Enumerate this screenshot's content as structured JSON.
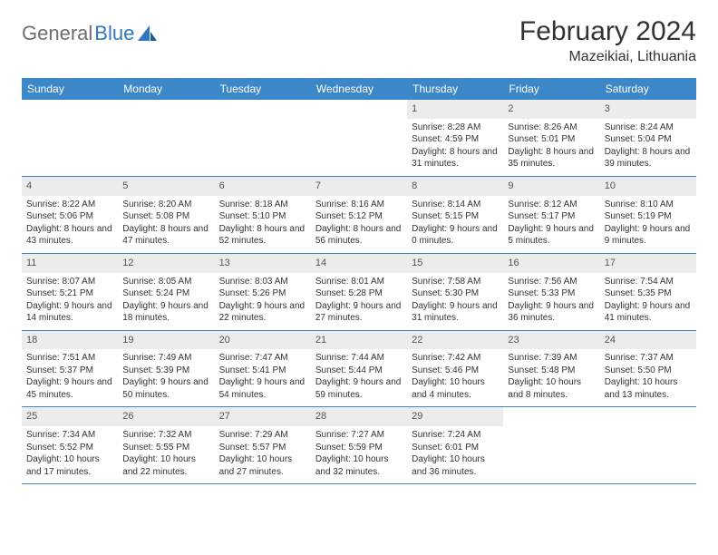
{
  "logo": {
    "general": "General",
    "blue": "Blue"
  },
  "title": "February 2024",
  "location": "Mazeikiai, Lithuania",
  "colors": {
    "header_bg": "#3b87c8",
    "header_text": "#ffffff",
    "daynum_bg": "#ececec",
    "rule": "#3b87c8",
    "text": "#333333"
  },
  "dayheads": [
    "Sunday",
    "Monday",
    "Tuesday",
    "Wednesday",
    "Thursday",
    "Friday",
    "Saturday"
  ],
  "weeks": [
    [
      {
        "num": "",
        "sunrise": "",
        "sunset": "",
        "daylight": ""
      },
      {
        "num": "",
        "sunrise": "",
        "sunset": "",
        "daylight": ""
      },
      {
        "num": "",
        "sunrise": "",
        "sunset": "",
        "daylight": ""
      },
      {
        "num": "",
        "sunrise": "",
        "sunset": "",
        "daylight": ""
      },
      {
        "num": "1",
        "sunrise": "Sunrise: 8:28 AM",
        "sunset": "Sunset: 4:59 PM",
        "daylight": "Daylight: 8 hours and 31 minutes."
      },
      {
        "num": "2",
        "sunrise": "Sunrise: 8:26 AM",
        "sunset": "Sunset: 5:01 PM",
        "daylight": "Daylight: 8 hours and 35 minutes."
      },
      {
        "num": "3",
        "sunrise": "Sunrise: 8:24 AM",
        "sunset": "Sunset: 5:04 PM",
        "daylight": "Daylight: 8 hours and 39 minutes."
      }
    ],
    [
      {
        "num": "4",
        "sunrise": "Sunrise: 8:22 AM",
        "sunset": "Sunset: 5:06 PM",
        "daylight": "Daylight: 8 hours and 43 minutes."
      },
      {
        "num": "5",
        "sunrise": "Sunrise: 8:20 AM",
        "sunset": "Sunset: 5:08 PM",
        "daylight": "Daylight: 8 hours and 47 minutes."
      },
      {
        "num": "6",
        "sunrise": "Sunrise: 8:18 AM",
        "sunset": "Sunset: 5:10 PM",
        "daylight": "Daylight: 8 hours and 52 minutes."
      },
      {
        "num": "7",
        "sunrise": "Sunrise: 8:16 AM",
        "sunset": "Sunset: 5:12 PM",
        "daylight": "Daylight: 8 hours and 56 minutes."
      },
      {
        "num": "8",
        "sunrise": "Sunrise: 8:14 AM",
        "sunset": "Sunset: 5:15 PM",
        "daylight": "Daylight: 9 hours and 0 minutes."
      },
      {
        "num": "9",
        "sunrise": "Sunrise: 8:12 AM",
        "sunset": "Sunset: 5:17 PM",
        "daylight": "Daylight: 9 hours and 5 minutes."
      },
      {
        "num": "10",
        "sunrise": "Sunrise: 8:10 AM",
        "sunset": "Sunset: 5:19 PM",
        "daylight": "Daylight: 9 hours and 9 minutes."
      }
    ],
    [
      {
        "num": "11",
        "sunrise": "Sunrise: 8:07 AM",
        "sunset": "Sunset: 5:21 PM",
        "daylight": "Daylight: 9 hours and 14 minutes."
      },
      {
        "num": "12",
        "sunrise": "Sunrise: 8:05 AM",
        "sunset": "Sunset: 5:24 PM",
        "daylight": "Daylight: 9 hours and 18 minutes."
      },
      {
        "num": "13",
        "sunrise": "Sunrise: 8:03 AM",
        "sunset": "Sunset: 5:26 PM",
        "daylight": "Daylight: 9 hours and 22 minutes."
      },
      {
        "num": "14",
        "sunrise": "Sunrise: 8:01 AM",
        "sunset": "Sunset: 5:28 PM",
        "daylight": "Daylight: 9 hours and 27 minutes."
      },
      {
        "num": "15",
        "sunrise": "Sunrise: 7:58 AM",
        "sunset": "Sunset: 5:30 PM",
        "daylight": "Daylight: 9 hours and 31 minutes."
      },
      {
        "num": "16",
        "sunrise": "Sunrise: 7:56 AM",
        "sunset": "Sunset: 5:33 PM",
        "daylight": "Daylight: 9 hours and 36 minutes."
      },
      {
        "num": "17",
        "sunrise": "Sunrise: 7:54 AM",
        "sunset": "Sunset: 5:35 PM",
        "daylight": "Daylight: 9 hours and 41 minutes."
      }
    ],
    [
      {
        "num": "18",
        "sunrise": "Sunrise: 7:51 AM",
        "sunset": "Sunset: 5:37 PM",
        "daylight": "Daylight: 9 hours and 45 minutes."
      },
      {
        "num": "19",
        "sunrise": "Sunrise: 7:49 AM",
        "sunset": "Sunset: 5:39 PM",
        "daylight": "Daylight: 9 hours and 50 minutes."
      },
      {
        "num": "20",
        "sunrise": "Sunrise: 7:47 AM",
        "sunset": "Sunset: 5:41 PM",
        "daylight": "Daylight: 9 hours and 54 minutes."
      },
      {
        "num": "21",
        "sunrise": "Sunrise: 7:44 AM",
        "sunset": "Sunset: 5:44 PM",
        "daylight": "Daylight: 9 hours and 59 minutes."
      },
      {
        "num": "22",
        "sunrise": "Sunrise: 7:42 AM",
        "sunset": "Sunset: 5:46 PM",
        "daylight": "Daylight: 10 hours and 4 minutes."
      },
      {
        "num": "23",
        "sunrise": "Sunrise: 7:39 AM",
        "sunset": "Sunset: 5:48 PM",
        "daylight": "Daylight: 10 hours and 8 minutes."
      },
      {
        "num": "24",
        "sunrise": "Sunrise: 7:37 AM",
        "sunset": "Sunset: 5:50 PM",
        "daylight": "Daylight: 10 hours and 13 minutes."
      }
    ],
    [
      {
        "num": "25",
        "sunrise": "Sunrise: 7:34 AM",
        "sunset": "Sunset: 5:52 PM",
        "daylight": "Daylight: 10 hours and 17 minutes."
      },
      {
        "num": "26",
        "sunrise": "Sunrise: 7:32 AM",
        "sunset": "Sunset: 5:55 PM",
        "daylight": "Daylight: 10 hours and 22 minutes."
      },
      {
        "num": "27",
        "sunrise": "Sunrise: 7:29 AM",
        "sunset": "Sunset: 5:57 PM",
        "daylight": "Daylight: 10 hours and 27 minutes."
      },
      {
        "num": "28",
        "sunrise": "Sunrise: 7:27 AM",
        "sunset": "Sunset: 5:59 PM",
        "daylight": "Daylight: 10 hours and 32 minutes."
      },
      {
        "num": "29",
        "sunrise": "Sunrise: 7:24 AM",
        "sunset": "Sunset: 6:01 PM",
        "daylight": "Daylight: 10 hours and 36 minutes."
      },
      {
        "num": "",
        "sunrise": "",
        "sunset": "",
        "daylight": ""
      },
      {
        "num": "",
        "sunrise": "",
        "sunset": "",
        "daylight": ""
      }
    ]
  ]
}
